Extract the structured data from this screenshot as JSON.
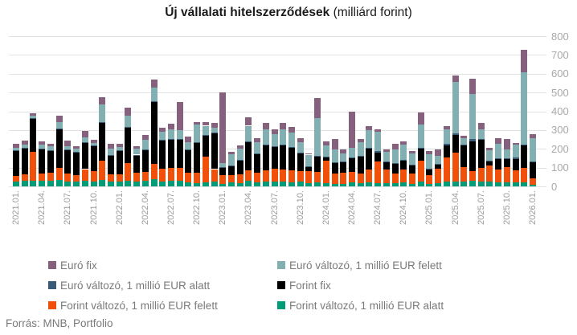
{
  "title": {
    "main": "Új vállalati hitelszerződések",
    "suffix": " (milliárd forint)"
  },
  "source": "Forrás: MNB, Portfolio",
  "chart_data": {
    "type": "bar",
    "stacked": true,
    "grid": true,
    "y_axis_side": "right",
    "ylim": [
      0,
      800
    ],
    "y_ticks": [
      0,
      100,
      200,
      300,
      400,
      500,
      600,
      700,
      800
    ],
    "x_tick_every": 3,
    "categories": [
      "2021.01.",
      "2021.02.",
      "2021.03.",
      "2021.04.",
      "2021.05.",
      "2021.06.",
      "2021.07.",
      "2021.08.",
      "2021.09.",
      "2021.10.",
      "2021.11.",
      "2021.12.",
      "2022.01.",
      "2022.02.",
      "2022.03.",
      "2022.04.",
      "2022.05.",
      "2022.06.",
      "2022.07.",
      "2022.08.",
      "2022.09.",
      "2022.10.",
      "2022.11.",
      "2022.12.",
      "2023.01.",
      "2023.02.",
      "2023.03.",
      "2023.04.",
      "2023.05.",
      "2023.06.",
      "2023.07.",
      "2023.08.",
      "2023.09.",
      "2023.10.",
      "2023.11.",
      "2023.12.",
      "2024.01.",
      "2024.02.",
      "2024.03.",
      "2024.04.",
      "2024.05.",
      "2024.06.",
      "2024.07.",
      "2024.08.",
      "2024.09.",
      "2024.10.",
      "2024.11.",
      "2024.12.",
      "2025.01.",
      "2025.02.",
      "2025.03.",
      "2025.04.",
      "2025.05.",
      "2025.06.",
      "2025.07.",
      "2025.08.",
      "2025.09.",
      "2025.10.",
      "2025.11.",
      "2025.12.",
      "2026.01."
    ],
    "series": [
      {
        "name": "Forint változó, 1 millió EUR alatt",
        "color": "#009B77",
        "values": [
          25,
          30,
          30,
          28,
          28,
          35,
          25,
          24,
          30,
          26,
          35,
          25,
          25,
          30,
          26,
          30,
          38,
          25,
          28,
          30,
          20,
          16,
          20,
          24,
          14,
          20,
          18,
          28,
          22,
          25,
          24,
          26,
          20,
          24,
          18,
          20,
          15,
          12,
          14,
          20,
          15,
          22,
          18,
          19,
          15,
          20,
          12,
          25,
          12,
          16,
          24,
          25,
          25,
          30,
          25,
          25,
          20,
          22,
          20,
          20,
          10
        ]
      },
      {
        "name": "Forint változó, 1 millió EUR felett",
        "color": "#F0500A",
        "values": [
          30,
          35,
          155,
          40,
          45,
          65,
          42,
          36,
          62,
          55,
          100,
          38,
          38,
          95,
          45,
          45,
          80,
          70,
          70,
          70,
          52,
          57,
          140,
          68,
          47,
          42,
          45,
          57,
          50,
          60,
          70,
          64,
          64,
          56,
          62,
          57,
          122,
          57,
          60,
          55,
          54,
          68,
          116,
          70,
          55,
          68,
          57,
          110,
          50,
          78,
          130,
          155,
          76,
          50,
          72,
          88,
          71,
          79,
          66,
          80,
          33
        ]
      },
      {
        "name": "Forint fix",
        "color": "#000000",
        "values": [
          135,
          140,
          175,
          130,
          118,
          205,
          128,
          120,
          140,
          135,
          205,
          102,
          128,
          190,
          95,
          120,
          330,
          150,
          150,
          150,
          122,
          158,
          110,
          192,
          38,
          48,
          75,
          152,
          100,
          135,
          118,
          128,
          122,
          98,
          26,
          80,
          20,
          55,
          56,
          78,
          92,
          112,
          46,
          42,
          50,
          50,
          45,
          68,
          30,
          22,
          65,
          95,
          117,
          160,
          150,
          20,
          54,
          46,
          61,
          120,
          86
        ]
      },
      {
        "name": "Euró változó, 1 millió EUR alatt",
        "color": "#3A5B78",
        "values": [
          2,
          2,
          3,
          3,
          3,
          3,
          3,
          3,
          3,
          3,
          4,
          3,
          3,
          3,
          3,
          3,
          4,
          3,
          3,
          4,
          3,
          4,
          3,
          3,
          5,
          3,
          3,
          3,
          3,
          3,
          3,
          3,
          3,
          3,
          3,
          5,
          3,
          3,
          3,
          3,
          3,
          4,
          10,
          3,
          3,
          3,
          3,
          4,
          3,
          3,
          8,
          8,
          4,
          11,
          4,
          4,
          3,
          4,
          9,
          4,
          3
        ]
      },
      {
        "name": "Euró változó, 1 millió EUR felett",
        "color": "#82AFB2",
        "values": [
          15,
          17,
          15,
          20,
          18,
          35,
          17,
          17,
          24,
          14,
          92,
          34,
          15,
          60,
          30,
          50,
          76,
          42,
          53,
          46,
          38,
          95,
          50,
          25,
          20,
          60,
          60,
          83,
          62,
          82,
          64,
          82,
          78,
          56,
          60,
          200,
          58,
          70,
          43,
          50,
          70,
          95,
          100,
          50,
          75,
          80,
          60,
          122,
          75,
          42,
          78,
          275,
          33,
          242,
          53,
          54,
          77,
          46,
          67,
          385,
          125
        ]
      },
      {
        "name": "Euró fix",
        "color": "#85617E",
        "values": [
          20,
          18,
          12,
          18,
          15,
          35,
          30,
          14,
          38,
          14,
          40,
          26,
          18,
          40,
          14,
          24,
          40,
          21,
          30,
          148,
          30,
          12,
          18,
          27,
          378,
          12,
          16,
          45,
          20,
          33,
          24,
          33,
          29,
          18,
          7,
          108,
          20,
          57,
          22,
          192,
          20,
          18,
          15,
          12,
          27,
          17,
          12,
          64,
          20,
          37,
          17,
          31,
          13,
          81,
          36,
          13,
          33,
          57,
          9,
          120,
          19
        ]
      }
    ],
    "legend": [
      {
        "label": "Euró fix",
        "color": "#85617E"
      },
      {
        "label": "Euró változó, 1 millió EUR felett",
        "color": "#82AFB2"
      },
      {
        "label": "Euró változó, 1 millió EUR alatt",
        "color": "#3A5B78"
      },
      {
        "label": "Forint fix",
        "color": "#000000"
      },
      {
        "label": "Forint változó, 1 millió EUR felett",
        "color": "#F0500A"
      },
      {
        "label": "Forint változó, 1 millió EUR alatt",
        "color": "#009B77"
      }
    ]
  }
}
